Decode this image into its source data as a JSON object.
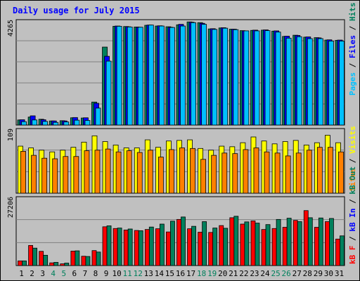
{
  "chart_data": {
    "type": "bar",
    "title": "Daily usage for July 2015",
    "days": [
      "1",
      "2",
      "3",
      "4",
      "5",
      "6",
      "7",
      "8",
      "9",
      "10",
      "11",
      "12",
      "13",
      "14",
      "15",
      "16",
      "17",
      "18",
      "19",
      "20",
      "21",
      "22",
      "23",
      "24",
      "25",
      "26",
      "27",
      "28",
      "29",
      "30",
      "31"
    ],
    "weekend_days": [
      "4",
      "5",
      "11",
      "12",
      "18",
      "19",
      "25",
      "26"
    ],
    "panels": [
      {
        "id": "pages_files_hits",
        "max_label": "4265",
        "max": 4265,
        "series": [
          {
            "name": "Hits",
            "color": "#00805c",
            "values": [
              210,
              330,
              240,
              170,
              180,
              300,
              290,
              950,
              3220,
              4080,
              4070,
              4050,
              4120,
              4090,
              4060,
              4140,
              4260,
              4230,
              3970,
              4010,
              3960,
              3900,
              3910,
              3920,
              3880,
              3660,
              3710,
              3630,
              3610,
              3510,
              3500
            ]
          },
          {
            "name": "Files",
            "color": "#0000ff",
            "values": [
              220,
              380,
              220,
              170,
              170,
              310,
              300,
              900,
              2840,
              4090,
              4060,
              4040,
              4130,
              4100,
              4040,
              4160,
              4250,
              4200,
              3980,
              4020,
              3960,
              3890,
              3920,
              3930,
              3890,
              3670,
              3700,
              3640,
              3600,
              3520,
              3510
            ]
          },
          {
            "name": "Pages",
            "color": "#00c0ff",
            "values": [
              140,
              210,
              150,
              110,
              130,
              200,
              190,
              700,
              2640,
              4080,
              4050,
              4040,
              4130,
              4090,
              4030,
              4090,
              4230,
              4160,
              3950,
              4000,
              3940,
              3890,
              3890,
              3900,
              3840,
              3590,
              3650,
              3570,
              3570,
              3470,
              3470
            ]
          }
        ]
      },
      {
        "id": "visits_sites",
        "max_label": "109",
        "max": 109,
        "series": [
          {
            "name": "Visits",
            "color": "#ffff00",
            "values": [
              82,
              79,
              75,
              72,
              75,
              80,
              89,
              100,
              90,
              84,
              79,
              79,
              93,
              80,
              91,
              92,
              93,
              78,
              75,
              82,
              81,
              88,
              98,
              91,
              86,
              90,
              92,
              84,
              88,
              101,
              88
            ]
          },
          {
            "name": "Sites",
            "color": "#ff8000",
            "values": [
              73,
              66,
              61,
              60,
              64,
              64,
              74,
              75,
              77,
              72,
              74,
              71,
              75,
              63,
              76,
              79,
              78,
              59,
              66,
              70,
              69,
              76,
              79,
              72,
              70,
              65,
              70,
              75,
              80,
              80,
              72
            ]
          }
        ]
      },
      {
        "id": "kbf_kbin_kbout",
        "max_label": "27206",
        "max": 27206,
        "series": [
          {
            "name": "KBytes F",
            "color": "#ff0000",
            "values": [
              1900,
              8200,
              5800,
              1100,
              700,
              5900,
              3800,
              6100,
              15800,
              15100,
              14500,
              14300,
              14700,
              15000,
              13700,
              18800,
              15000,
              13600,
              13500,
              16300,
              19500,
              16900,
              18200,
              14700,
              15100,
              15600,
              18400,
              22400,
              15600,
              17900,
              10800
            ]
          },
          {
            "name": "KBytes In",
            "color": "#0000ff",
            "values": [
              0,
              0,
              0,
              0,
              0,
              0,
              0,
              0,
              0,
              0,
              0,
              0,
              0,
              0,
              0,
              0,
              0,
              0,
              0,
              0,
              0,
              0,
              0,
              0,
              0,
              0,
              0,
              0,
              0,
              0,
              0
            ]
          },
          {
            "name": "KBytes Out",
            "color": "#00805c",
            "values": [
              1900,
              7100,
              4200,
              1300,
              1000,
              6000,
              3700,
              5500,
              16200,
              15300,
              14900,
              14200,
              15700,
              16900,
              18100,
              19800,
              16000,
              17900,
              15300,
              15200,
              20100,
              17800,
              17300,
              16700,
              18800,
              19300,
              17900,
              19500,
              19400,
              19200,
              12100
            ]
          }
        ]
      }
    ],
    "legend": {
      "panel1": [
        "Pages",
        "Files",
        "Hits"
      ],
      "panel2": [
        "Sites",
        "Visits"
      ],
      "panel3": [
        "kB F",
        "kB In",
        "kB Out"
      ],
      "separator": " / "
    },
    "colors": {
      "background": "#c0c0c0",
      "plot": "#c0c0c0",
      "title": "#0000ff",
      "grid": "#808080",
      "weekday_label": "#000000",
      "weekend_label": "#00805c"
    }
  }
}
